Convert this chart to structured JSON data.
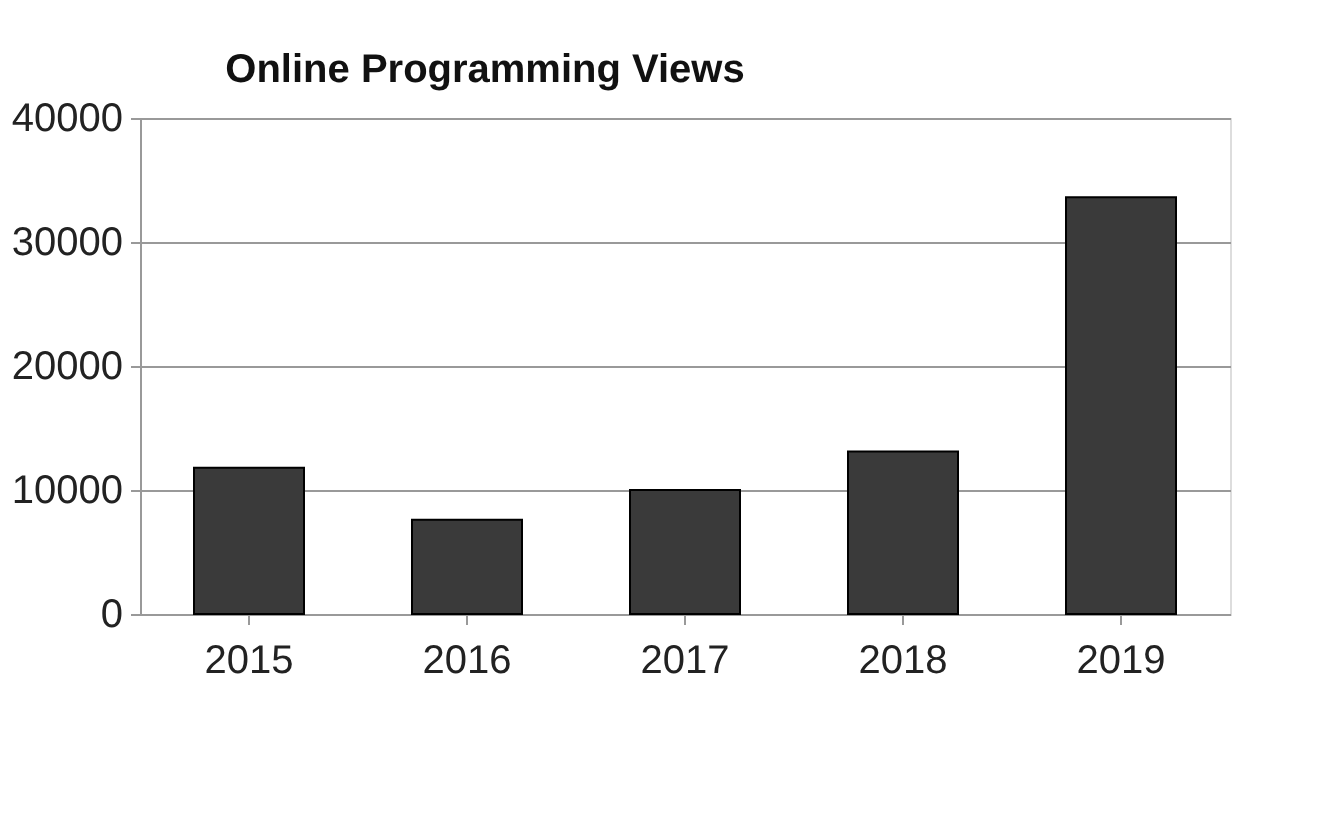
{
  "chart_data": {
    "type": "bar",
    "title": "Online Programming Views",
    "categories": [
      "2015",
      "2016",
      "2017",
      "2018",
      "2019"
    ],
    "values": [
      11800,
      7600,
      10000,
      13100,
      33600
    ],
    "color": "#3a3a3a",
    "ylim": [
      0,
      40000
    ],
    "yticks": [
      0,
      10000,
      20000,
      30000,
      40000
    ],
    "grid": "y"
  }
}
